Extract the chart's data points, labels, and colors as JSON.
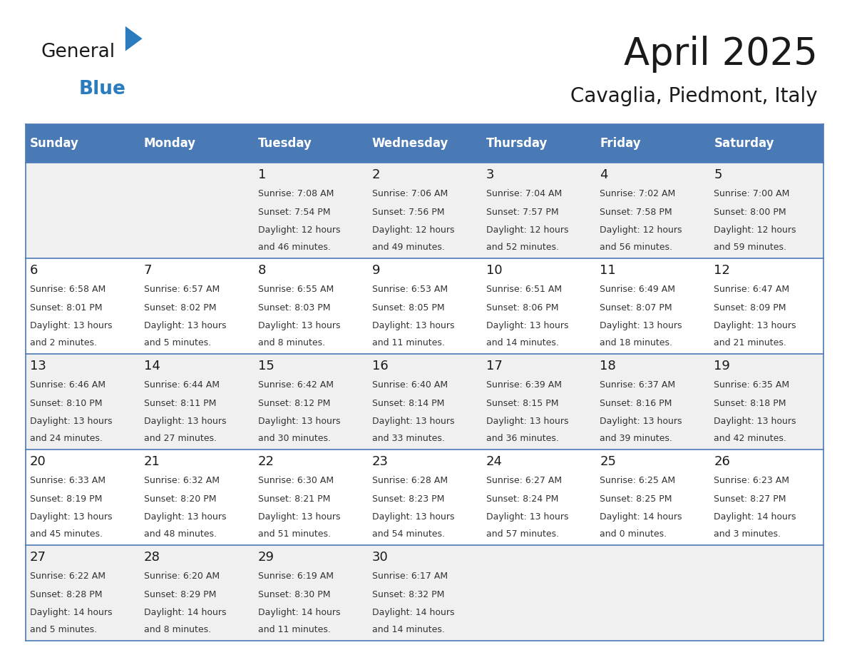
{
  "title": "April 2025",
  "subtitle": "Cavaglia, Piedmont, Italy",
  "header_bg": "#4a7ab5",
  "header_text": "#ffffff",
  "row_bg_odd": "#f0f0f0",
  "row_bg_even": "#ffffff",
  "border_color": "#4a7ab5",
  "day_headers": [
    "Sunday",
    "Monday",
    "Tuesday",
    "Wednesday",
    "Thursday",
    "Friday",
    "Saturday"
  ],
  "days": [
    {
      "date": "",
      "sunrise": "",
      "sunset": "",
      "daylight1": "",
      "daylight2": ""
    },
    {
      "date": "",
      "sunrise": "",
      "sunset": "",
      "daylight1": "",
      "daylight2": ""
    },
    {
      "date": "1",
      "sunrise": "Sunrise: 7:08 AM",
      "sunset": "Sunset: 7:54 PM",
      "daylight1": "Daylight: 12 hours",
      "daylight2": "and 46 minutes."
    },
    {
      "date": "2",
      "sunrise": "Sunrise: 7:06 AM",
      "sunset": "Sunset: 7:56 PM",
      "daylight1": "Daylight: 12 hours",
      "daylight2": "and 49 minutes."
    },
    {
      "date": "3",
      "sunrise": "Sunrise: 7:04 AM",
      "sunset": "Sunset: 7:57 PM",
      "daylight1": "Daylight: 12 hours",
      "daylight2": "and 52 minutes."
    },
    {
      "date": "4",
      "sunrise": "Sunrise: 7:02 AM",
      "sunset": "Sunset: 7:58 PM",
      "daylight1": "Daylight: 12 hours",
      "daylight2": "and 56 minutes."
    },
    {
      "date": "5",
      "sunrise": "Sunrise: 7:00 AM",
      "sunset": "Sunset: 8:00 PM",
      "daylight1": "Daylight: 12 hours",
      "daylight2": "and 59 minutes."
    },
    {
      "date": "6",
      "sunrise": "Sunrise: 6:58 AM",
      "sunset": "Sunset: 8:01 PM",
      "daylight1": "Daylight: 13 hours",
      "daylight2": "and 2 minutes."
    },
    {
      "date": "7",
      "sunrise": "Sunrise: 6:57 AM",
      "sunset": "Sunset: 8:02 PM",
      "daylight1": "Daylight: 13 hours",
      "daylight2": "and 5 minutes."
    },
    {
      "date": "8",
      "sunrise": "Sunrise: 6:55 AM",
      "sunset": "Sunset: 8:03 PM",
      "daylight1": "Daylight: 13 hours",
      "daylight2": "and 8 minutes."
    },
    {
      "date": "9",
      "sunrise": "Sunrise: 6:53 AM",
      "sunset": "Sunset: 8:05 PM",
      "daylight1": "Daylight: 13 hours",
      "daylight2": "and 11 minutes."
    },
    {
      "date": "10",
      "sunrise": "Sunrise: 6:51 AM",
      "sunset": "Sunset: 8:06 PM",
      "daylight1": "Daylight: 13 hours",
      "daylight2": "and 14 minutes."
    },
    {
      "date": "11",
      "sunrise": "Sunrise: 6:49 AM",
      "sunset": "Sunset: 8:07 PM",
      "daylight1": "Daylight: 13 hours",
      "daylight2": "and 18 minutes."
    },
    {
      "date": "12",
      "sunrise": "Sunrise: 6:47 AM",
      "sunset": "Sunset: 8:09 PM",
      "daylight1": "Daylight: 13 hours",
      "daylight2": "and 21 minutes."
    },
    {
      "date": "13",
      "sunrise": "Sunrise: 6:46 AM",
      "sunset": "Sunset: 8:10 PM",
      "daylight1": "Daylight: 13 hours",
      "daylight2": "and 24 minutes."
    },
    {
      "date": "14",
      "sunrise": "Sunrise: 6:44 AM",
      "sunset": "Sunset: 8:11 PM",
      "daylight1": "Daylight: 13 hours",
      "daylight2": "and 27 minutes."
    },
    {
      "date": "15",
      "sunrise": "Sunrise: 6:42 AM",
      "sunset": "Sunset: 8:12 PM",
      "daylight1": "Daylight: 13 hours",
      "daylight2": "and 30 minutes."
    },
    {
      "date": "16",
      "sunrise": "Sunrise: 6:40 AM",
      "sunset": "Sunset: 8:14 PM",
      "daylight1": "Daylight: 13 hours",
      "daylight2": "and 33 minutes."
    },
    {
      "date": "17",
      "sunrise": "Sunrise: 6:39 AM",
      "sunset": "Sunset: 8:15 PM",
      "daylight1": "Daylight: 13 hours",
      "daylight2": "and 36 minutes."
    },
    {
      "date": "18",
      "sunrise": "Sunrise: 6:37 AM",
      "sunset": "Sunset: 8:16 PM",
      "daylight1": "Daylight: 13 hours",
      "daylight2": "and 39 minutes."
    },
    {
      "date": "19",
      "sunrise": "Sunrise: 6:35 AM",
      "sunset": "Sunset: 8:18 PM",
      "daylight1": "Daylight: 13 hours",
      "daylight2": "and 42 minutes."
    },
    {
      "date": "20",
      "sunrise": "Sunrise: 6:33 AM",
      "sunset": "Sunset: 8:19 PM",
      "daylight1": "Daylight: 13 hours",
      "daylight2": "and 45 minutes."
    },
    {
      "date": "21",
      "sunrise": "Sunrise: 6:32 AM",
      "sunset": "Sunset: 8:20 PM",
      "daylight1": "Daylight: 13 hours",
      "daylight2": "and 48 minutes."
    },
    {
      "date": "22",
      "sunrise": "Sunrise: 6:30 AM",
      "sunset": "Sunset: 8:21 PM",
      "daylight1": "Daylight: 13 hours",
      "daylight2": "and 51 minutes."
    },
    {
      "date": "23",
      "sunrise": "Sunrise: 6:28 AM",
      "sunset": "Sunset: 8:23 PM",
      "daylight1": "Daylight: 13 hours",
      "daylight2": "and 54 minutes."
    },
    {
      "date": "24",
      "sunrise": "Sunrise: 6:27 AM",
      "sunset": "Sunset: 8:24 PM",
      "daylight1": "Daylight: 13 hours",
      "daylight2": "and 57 minutes."
    },
    {
      "date": "25",
      "sunrise": "Sunrise: 6:25 AM",
      "sunset": "Sunset: 8:25 PM",
      "daylight1": "Daylight: 14 hours",
      "daylight2": "and 0 minutes."
    },
    {
      "date": "26",
      "sunrise": "Sunrise: 6:23 AM",
      "sunset": "Sunset: 8:27 PM",
      "daylight1": "Daylight: 14 hours",
      "daylight2": "and 3 minutes."
    },
    {
      "date": "27",
      "sunrise": "Sunrise: 6:22 AM",
      "sunset": "Sunset: 8:28 PM",
      "daylight1": "Daylight: 14 hours",
      "daylight2": "and 5 minutes."
    },
    {
      "date": "28",
      "sunrise": "Sunrise: 6:20 AM",
      "sunset": "Sunset: 8:29 PM",
      "daylight1": "Daylight: 14 hours",
      "daylight2": "and 8 minutes."
    },
    {
      "date": "29",
      "sunrise": "Sunrise: 6:19 AM",
      "sunset": "Sunset: 8:30 PM",
      "daylight1": "Daylight: 14 hours",
      "daylight2": "and 11 minutes."
    },
    {
      "date": "30",
      "sunrise": "Sunrise: 6:17 AM",
      "sunset": "Sunset: 8:32 PM",
      "daylight1": "Daylight: 14 hours",
      "daylight2": "and 14 minutes."
    },
    {
      "date": "",
      "sunrise": "",
      "sunset": "",
      "daylight1": "",
      "daylight2": ""
    },
    {
      "date": "",
      "sunrise": "",
      "sunset": "",
      "daylight1": "",
      "daylight2": ""
    },
    {
      "date": "",
      "sunrise": "",
      "sunset": "",
      "daylight1": "",
      "daylight2": ""
    },
    {
      "date": "",
      "sunrise": "",
      "sunset": "",
      "daylight1": "",
      "daylight2": ""
    }
  ],
  "logo_color_general": "#1a1a1a",
  "logo_color_blue": "#2b7bbf",
  "logo_triangle_color": "#2b7bbf",
  "title_fontsize": 38,
  "subtitle_fontsize": 20,
  "header_fontsize": 12,
  "daynum_fontsize": 13,
  "cell_fontsize": 9
}
